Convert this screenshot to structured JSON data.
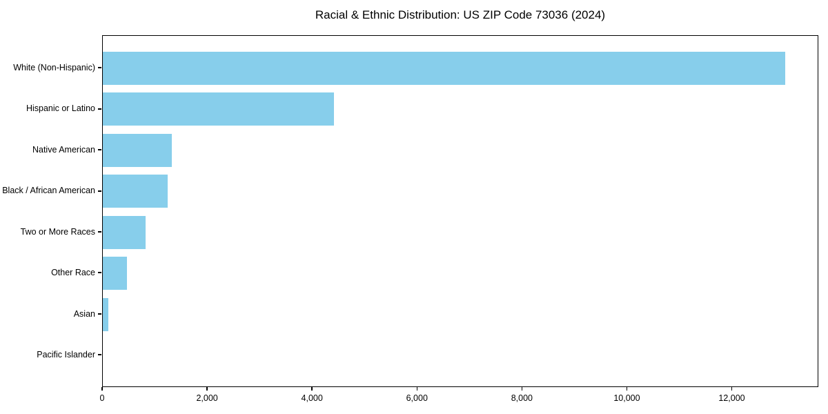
{
  "chart_data": {
    "type": "bar",
    "orientation": "horizontal",
    "title": "Racial & Ethnic Distribution: US ZIP Code 73036 (2024)",
    "categories": [
      "White (Non-Hispanic)",
      "Hispanic or Latino",
      "Native American",
      "Black / African American",
      "Two or More Races",
      "Other Race",
      "Asian",
      "Pacific Islander"
    ],
    "values": [
      13000,
      4400,
      1320,
      1240,
      815,
      465,
      105,
      0
    ],
    "xlabel": "",
    "ylabel": "",
    "xlim": [
      0,
      13650
    ],
    "xtick_values": [
      0,
      2000,
      4000,
      6000,
      8000,
      10000,
      12000
    ],
    "xtick_labels": [
      "0",
      "2,000",
      "4,000",
      "6,000",
      "8,000",
      "10,000",
      "12,000"
    ],
    "bar_color": "#87CEEB",
    "axis_color": "#000000",
    "grid": false,
    "legend": null
  }
}
